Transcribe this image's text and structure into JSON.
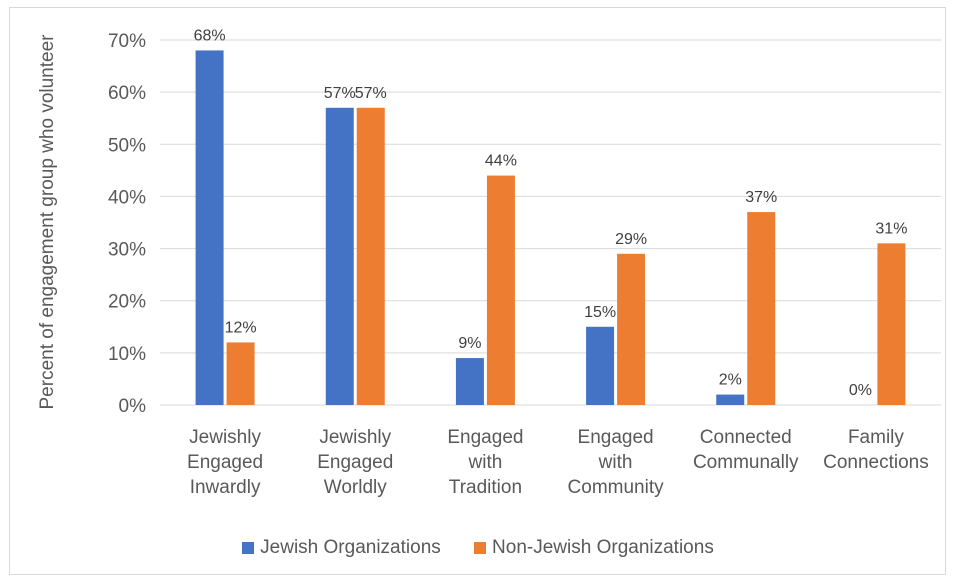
{
  "chart_data": {
    "type": "bar",
    "categories": [
      [
        "Jewishly",
        "Engaged",
        "Inwardly"
      ],
      [
        "Jewishly",
        "Engaged",
        "Worldly"
      ],
      [
        "Engaged",
        "with",
        "Tradition"
      ],
      [
        "Engaged",
        "with",
        "Community"
      ],
      [
        "Connected",
        "Communally"
      ],
      [
        "Family",
        "Connections"
      ]
    ],
    "series": [
      {
        "name": "Jewish Organizations",
        "color": "#4472c4",
        "values": [
          68,
          57,
          9,
          15,
          2,
          0
        ]
      },
      {
        "name": "Non-Jewish Organizations",
        "color": "#ed7d31",
        "values": [
          12,
          57,
          44,
          29,
          37,
          31
        ]
      }
    ],
    "value_suffix": "%",
    "ylabel": "Percent of engagement group who volunteer",
    "ylim": [
      0,
      70
    ],
    "yticks": [
      0,
      10,
      20,
      30,
      40,
      50,
      60,
      70
    ],
    "ytick_labels": [
      "0%",
      "10%",
      "20%",
      "30%",
      "40%",
      "50%",
      "60%",
      "70%"
    ],
    "grid": true,
    "legend_position": "bottom"
  }
}
